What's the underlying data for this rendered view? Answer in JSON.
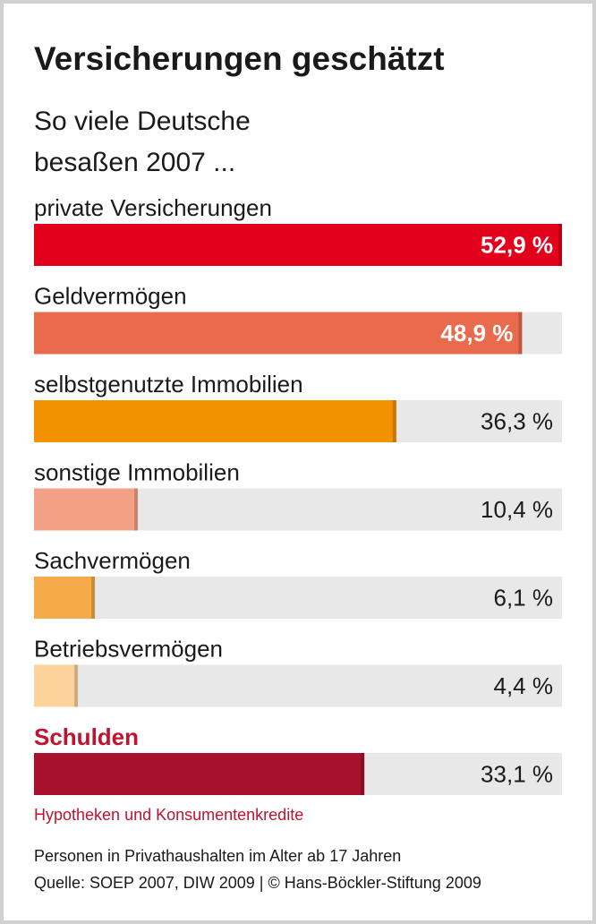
{
  "chart_data": {
    "type": "bar",
    "orientation": "horizontal",
    "title": "Versicherungen geschätzt",
    "subtitle": [
      "So viele Deutsche",
      "besaßen 2007 ..."
    ],
    "categories": [
      "private Versicherungen",
      "Geldvermögen",
      "selbstgenutzte Immobilien",
      "sonstige Immobilien",
      "Sachvermögen",
      "Betriebsvermögen",
      "Schulden"
    ],
    "values": [
      52.9,
      48.9,
      36.3,
      10.4,
      6.1,
      4.4,
      33.1
    ],
    "value_labels": [
      "52,9 %",
      "48,9 %",
      "36,3 %",
      "10,4 %",
      "6,1 %",
      "4,4 %",
      "33,1 %"
    ],
    "colors": [
      "#e2001a",
      "#ea6a4d",
      "#f39200",
      "#f4a086",
      "#f6ab4a",
      "#fdd29b",
      "#a8112b"
    ],
    "annotation": "Hypotheken und Konsumentenkredite",
    "footnotes": [
      "Personen in Privathaushalten im Alter ab 17 Jahren",
      "Quelle: SOEP 2007, DIW 2009 | © Hans-Böckler-Stiftung 2009"
    ]
  }
}
